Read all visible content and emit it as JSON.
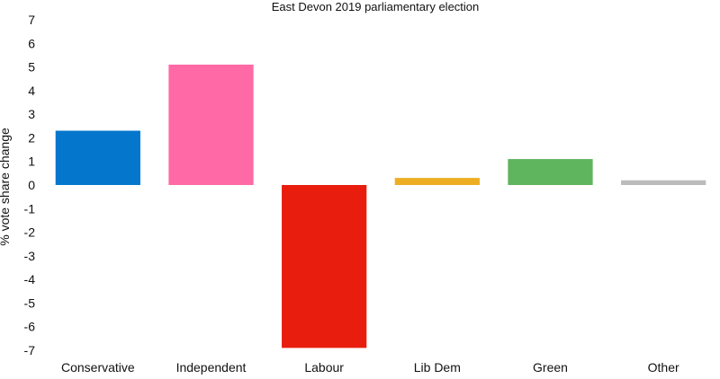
{
  "chart_data": {
    "type": "bar",
    "title": "East Devon 2019 parliamentary election",
    "xlabel": "",
    "ylabel": "% vote share change",
    "categories": [
      "Conservative",
      "Independent",
      "Labour",
      "Lib Dem",
      "Green",
      "Other"
    ],
    "values": [
      2.3,
      5.1,
      -6.9,
      0.3,
      1.1,
      0.2
    ],
    "colors": [
      "#0477cd",
      "#ff69a5",
      "#e81d0e",
      "#edae24",
      "#5fb45e",
      "#bbbbbb"
    ],
    "ylim": [
      -7,
      7
    ],
    "yticks": [
      "7",
      "6",
      "5",
      "4",
      "3",
      "2",
      "1",
      "0",
      "-1",
      "-2",
      "-3",
      "-4",
      "-5",
      "-6",
      "-7"
    ],
    "grid": false,
    "legend": "none"
  }
}
